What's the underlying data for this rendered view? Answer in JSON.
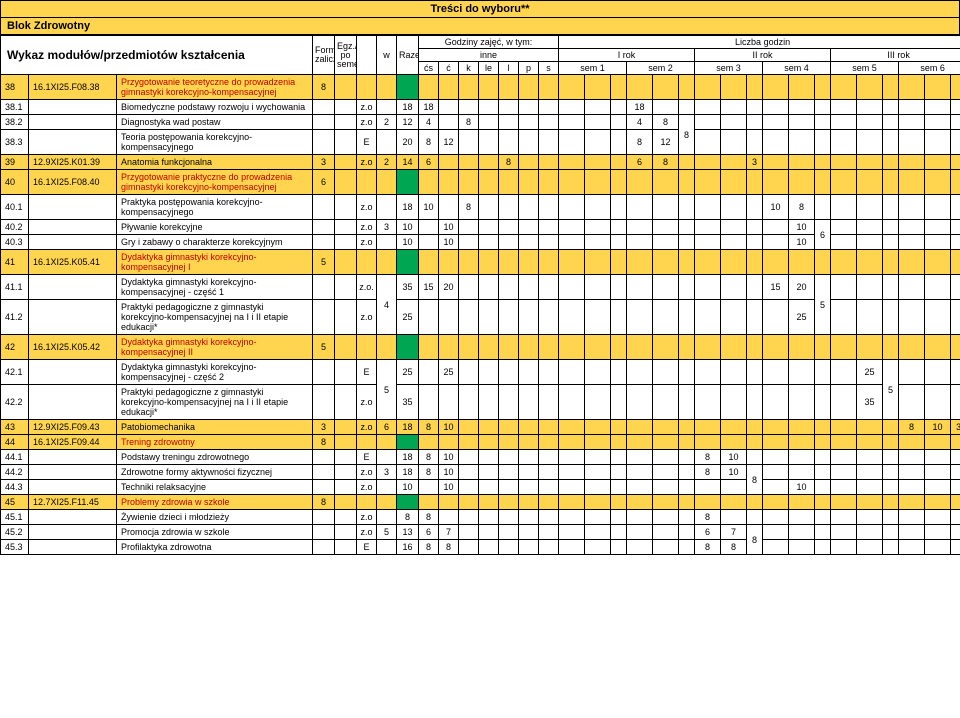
{
  "title": "Treści do wyboru**",
  "block": "Blok Zdrowotny",
  "header": {
    "wykaz": "Wykaz modułów/przedmiotów kształcenia",
    "forma": "Forma zaliczenia",
    "egz": "Egz./zal. po semestrze",
    "razem": "Razem",
    "w": "w",
    "godziny": "Godziny zajęć, w tym:",
    "inne": "inne",
    "cols": [
      "ćs",
      "ć",
      "k",
      "le",
      "l",
      "p",
      "s"
    ],
    "liczba": "Liczba godzin",
    "rok1": "I rok",
    "rok2": "II rok",
    "rok3": "III rok",
    "sems": [
      "sem 1",
      "sem 2",
      "sem 3",
      "sem 4",
      "sem 5",
      "sem 6"
    ]
  },
  "rows": [
    {
      "lp": "38",
      "code": "16.1XI25.F08.38",
      "name": "Przygotowanie teoretyczne do prowadzenia gimnastyki korekcyjno-kompensacyjnej",
      "hl": true,
      "forma": "8",
      "greenRazem": true
    },
    {
      "lp": "38.1",
      "name": "Biomedyczne podstawy rozwoju i wychowania",
      "zo": "z.o",
      "razem": "18",
      "c": {
        "cs": "18"
      },
      "s": {
        "s2": "18"
      }
    },
    {
      "lp": "38.2",
      "name": "Diagnostyka wad postaw",
      "zo": "z.o",
      "w": "2",
      "razem": "12",
      "c": {
        "cs": "4",
        "k": "8"
      },
      "s": {
        "s2": "4",
        "s2b": "8"
      },
      "pair38": "8",
      "rowspanPair": true
    },
    {
      "lp": "38.3",
      "name": "Teoria postępowania korekcyjno-kompensacyjnego",
      "zo": "E",
      "razem": "20",
      "c": {
        "cs": "8",
        "c": "12"
      },
      "s": {
        "s2": "8",
        "s2b": "12"
      }
    },
    {
      "lp": "39",
      "code": "12.9XI25.K01.39",
      "name": "Anatomia funkcjonalna",
      "hl": true,
      "forma": "3",
      "zo": "z.o",
      "w": "2",
      "razem": "14",
      "c": {
        "cs": "6",
        "l": "8"
      },
      "s": {
        "s2": "6",
        "s2b": "8"
      },
      "sem3": "3"
    },
    {
      "lp": "40",
      "code": "16.1XI25.F08.40",
      "name": "Przygotowanie praktyczne do prowadzenia gimnastyki korekcyjno-kompensacyjnej",
      "hl": true,
      "forma": "6",
      "greenRazem": true
    },
    {
      "lp": "40.1",
      "name": "Praktyka postępowania korekcyjno-kompensacyjnego",
      "zo": "z.o",
      "razem": "18",
      "c": {
        "cs": "10",
        "k": "8"
      },
      "s": {
        "s4": "10",
        "s4b": "8"
      }
    },
    {
      "lp": "40.2",
      "name": "Pływanie korekcyjne",
      "zo": "z.o",
      "w": "3",
      "razem": "10",
      "c": {
        "c": "10"
      },
      "s": {
        "s4b": "10"
      },
      "pair40": "6",
      "rowspanPair": true
    },
    {
      "lp": "40.3",
      "name": "Gry i zabawy o charakterze korekcyjnym",
      "zo": "z.o",
      "razem": "10",
      "c": {
        "c": "10"
      },
      "s": {
        "s4b": "10"
      }
    },
    {
      "lp": "41",
      "code": "16.1XI25.K05.41",
      "name": "Dydaktyka gimnastyki korekcyjno-kompensacyjnej I",
      "hl": true,
      "forma": "5",
      "greenRazem": true
    },
    {
      "lp": "41.1",
      "name": "Dydaktyka gimnastyki korekcyjno-kompensacyjnej - część 1",
      "zo": "z.o.",
      "w": "4",
      "razem": "35",
      "c": {
        "cs": "15",
        "c": "20"
      },
      "s": {
        "s4": "15",
        "s4b": "20"
      },
      "pair41": "5",
      "rowspanPair": true,
      "rowspanW": true
    },
    {
      "lp": "41.2",
      "name": "Praktyki pedagogiczne z gimnastyki korekcyjno-kompensacyjnej na I i II etapie edukacji*",
      "zo": "z.o",
      "razem": "25",
      "s": {
        "s4b": "25"
      }
    },
    {
      "lp": "42",
      "code": "16.1XI25.K05.42",
      "name": "Dydaktyka gimnastyki korekcyjno-kompensacyjnej II",
      "hl": true,
      "forma": "5",
      "greenRazem": true
    },
    {
      "lp": "42.1",
      "name": "Dydaktyka gimnastyki korekcyjno-kompensacyjnej - część 2",
      "zo": "E",
      "w": "5",
      "razem": "25",
      "c": {
        "c": "25"
      },
      "s": {
        "s5b": "25"
      },
      "pair42": "5",
      "rowspanPair": true,
      "rowspanW": true
    },
    {
      "lp": "42.2",
      "name": "Praktyki pedagogiczne z gimnastyki korekcyjno-kompensacyjnej na I i II etapie edukacji*",
      "zo": "z.o",
      "razem": "35",
      "s": {
        "s5b": "35"
      }
    },
    {
      "lp": "43",
      "code": "12.9XI25.F09.43",
      "name": "Patobiomechanika",
      "hl": true,
      "forma": "3",
      "zo": "z.o",
      "w": "6",
      "razem": "18",
      "c": {
        "cs": "8",
        "c": "10"
      },
      "s": {
        "s6": "8",
        "s6b": "10"
      },
      "sem6c": "3"
    },
    {
      "lp": "44",
      "code": "16.1XI25.F09.44",
      "name": "Trening zdrowotny",
      "hl": true,
      "forma": "8",
      "greenRazem": true
    },
    {
      "lp": "44.1",
      "name": "Podstawy treningu zdrowotnego",
      "zo": "E",
      "razem": "18",
      "c": {
        "cs": "8",
        "c": "10"
      },
      "s": {
        "s3": "8",
        "s3b": "10"
      }
    },
    {
      "lp": "44.2",
      "name": "Zdrowotne formy aktywności fizycznej",
      "zo": "z.o",
      "w": "3",
      "razem": "18",
      "c": {
        "cs": "8",
        "c": "10"
      },
      "s": {
        "s3": "8",
        "s3b": "10"
      },
      "pair44": "8",
      "rowspanPair": true
    },
    {
      "lp": "44.3",
      "name": "Techniki relaksacyjne",
      "zo": "z.o",
      "razem": "10",
      "c": {
        "c": "10"
      },
      "s": {
        "s4b": "10"
      }
    },
    {
      "lp": "45",
      "code": "12.7XI25.F11.45",
      "name": "Problemy zdrowia w szkole",
      "hl": true,
      "forma": "8",
      "greenRazem": true
    },
    {
      "lp": "45.1",
      "name": "Żywienie dzieci i młodzieży",
      "zo": "z.o",
      "razem": "8",
      "c": {
        "cs": "8"
      },
      "s": {
        "s3": "8"
      }
    },
    {
      "lp": "45.2",
      "name": "Promocja zdrowia w szkole",
      "zo": "z.o",
      "w": "5",
      "razem": "13",
      "c": {
        "cs": "6",
        "c": "7"
      },
      "s": {
        "s3": "6",
        "s3b": "7"
      },
      "pair45": "8",
      "rowspanPair": true
    },
    {
      "lp": "45.3",
      "name": "Profilaktyka zdrowotna",
      "zo": "E",
      "razem": "16",
      "c": {
        "cs": "8",
        "c": "8"
      },
      "s": {
        "s3": "8",
        "s3b": "8"
      }
    }
  ],
  "layout": {
    "colw": {
      "lp": 28,
      "code": 88,
      "name": 196,
      "forma": 22,
      "egz": 22,
      "razem": 22,
      "w": 20,
      "cell": 22,
      "sem": 30
    }
  }
}
